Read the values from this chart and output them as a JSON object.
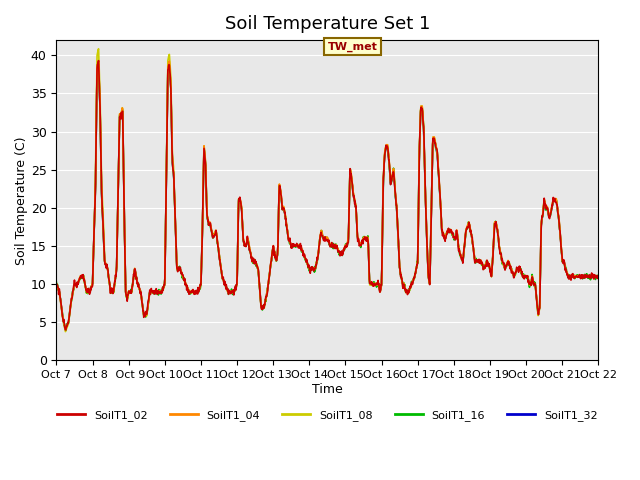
{
  "title": "Soil Temperature Set 1",
  "xlabel": "Time",
  "ylabel": "Soil Temperature (C)",
  "ylim": [
    0,
    42
  ],
  "yticks": [
    0,
    5,
    10,
    15,
    20,
    25,
    30,
    35,
    40
  ],
  "series_labels": [
    "SoilT1_02",
    "SoilT1_04",
    "SoilT1_08",
    "SoilT1_16",
    "SoilT1_32"
  ],
  "series_colors": [
    "#cc0000",
    "#ff8800",
    "#cccc00",
    "#00bb00",
    "#0000cc"
  ],
  "annotation_text": "TW_met",
  "bg_color": "#e8e8e8",
  "x_tick_labels": [
    "Oct 7",
    "Oct 8",
    " Oct 9",
    "Oct 10",
    "Oct 11",
    "Oct 12",
    "Oct 13",
    "Oct 14",
    "Oct 15",
    "Oct 16",
    "Oct 17",
    "Oct 18",
    "Oct 19",
    "Oct 20",
    "Oct 21",
    "Oct 22"
  ]
}
